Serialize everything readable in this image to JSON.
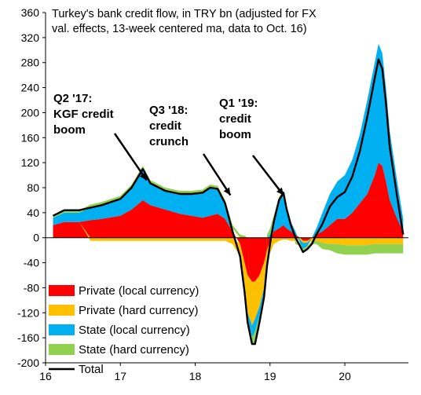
{
  "chart_data": {
    "type": "area",
    "title_lines": [
      "Turkey's bank credit flow, in TRY bn (adjusted for FX",
      "val. effects, 13-week centered ma, data to Oct. 16)"
    ],
    "xlabel": "",
    "ylabel": "",
    "ylim": [
      -200,
      360
    ],
    "yticks": [
      360,
      320,
      280,
      240,
      200,
      160,
      120,
      80,
      40,
      0,
      -40,
      -80,
      -120,
      -160,
      -200
    ],
    "xlim": [
      2016.0,
      2020.85
    ],
    "xticks": [
      {
        "label": "16",
        "value": 2016
      },
      {
        "label": "17",
        "value": 2017
      },
      {
        "label": "18",
        "value": 2018
      },
      {
        "label": "19",
        "value": 2019
      },
      {
        "label": "20",
        "value": 2020
      }
    ],
    "x": [
      2016.1,
      2016.25,
      2016.45,
      2016.6,
      2016.75,
      2016.9,
      2017.0,
      2017.15,
      2017.25,
      2017.3,
      2017.4,
      2017.6,
      2017.8,
      2017.95,
      2018.1,
      2018.2,
      2018.3,
      2018.4,
      2018.5,
      2018.6,
      2018.66,
      2018.7,
      2018.76,
      2018.8,
      2018.86,
      2018.92,
      2018.96,
      2019.0,
      2019.05,
      2019.12,
      2019.18,
      2019.22,
      2019.28,
      2019.34,
      2019.4,
      2019.44,
      2019.5,
      2019.56,
      2019.62,
      2019.7,
      2019.8,
      2019.9,
      2020.0,
      2020.1,
      2020.2,
      2020.3,
      2020.4,
      2020.45,
      2020.5,
      2020.55,
      2020.6,
      2020.7,
      2020.78
    ],
    "series": [
      {
        "name": "Private (local currency)",
        "color": "#ff0000",
        "values": [
          20,
          25,
          25,
          28,
          30,
          33,
          35,
          45,
          55,
          60,
          52,
          45,
          38,
          35,
          32,
          35,
          38,
          30,
          10,
          -10,
          -40,
          -60,
          -70,
          -70,
          -60,
          -40,
          -20,
          -5,
          10,
          15,
          20,
          15,
          10,
          5,
          0,
          -5,
          -5,
          0,
          5,
          10,
          20,
          30,
          30,
          40,
          55,
          70,
          100,
          120,
          115,
          90,
          60,
          30,
          10
        ]
      },
      {
        "name": "Private (hard currency)",
        "color": "#ffc000",
        "values": [
          0,
          0,
          0,
          -5,
          -5,
          -5,
          -5,
          -5,
          -5,
          -5,
          -5,
          -5,
          -5,
          -5,
          -5,
          -5,
          -5,
          -5,
          -10,
          -20,
          -40,
          -60,
          -70,
          -60,
          -50,
          -40,
          -30,
          -20,
          -10,
          -5,
          -3,
          -3,
          -5,
          -5,
          -3,
          -3,
          -3,
          -5,
          -5,
          -8,
          -10,
          -10,
          -12,
          -12,
          -12,
          -12,
          -10,
          -10,
          -10,
          -10,
          -10,
          -10,
          -10
        ]
      },
      {
        "name": "State (local currency)",
        "color": "#00b0f0",
        "values": [
          12,
          15,
          15,
          20,
          22,
          25,
          27,
          35,
          45,
          50,
          35,
          30,
          32,
          35,
          40,
          45,
          40,
          25,
          5,
          -5,
          -10,
          -15,
          -20,
          -20,
          -15,
          -10,
          0,
          5,
          20,
          45,
          50,
          30,
          15,
          5,
          -5,
          -10,
          -5,
          0,
          10,
          30,
          50,
          60,
          70,
          85,
          110,
          150,
          180,
          190,
          180,
          150,
          110,
          60,
          20
        ]
      },
      {
        "name": "State (hard currency)",
        "color": "#92d050",
        "values": [
          3,
          4,
          4,
          5,
          5,
          5,
          5,
          5,
          5,
          5,
          5,
          5,
          5,
          5,
          5,
          5,
          5,
          5,
          5,
          5,
          3,
          0,
          -10,
          -20,
          -10,
          -5,
          5,
          10,
          5,
          5,
          5,
          5,
          0,
          -5,
          -5,
          -5,
          -5,
          -5,
          -5,
          -10,
          -10,
          -15,
          -15,
          -15,
          -15,
          -15,
          -15,
          -15,
          -15,
          -15,
          -15,
          -15,
          -15
        ]
      },
      {
        "name": "Total",
        "color": "#000000",
        "values": [
          35,
          44,
          44,
          48,
          52,
          58,
          62,
          80,
          100,
          110,
          87,
          75,
          70,
          70,
          72,
          80,
          78,
          55,
          10,
          -30,
          -87,
          -135,
          -170,
          -170,
          -135,
          -95,
          -45,
          -10,
          25,
          60,
          72,
          47,
          20,
          0,
          -13,
          -23,
          -18,
          -10,
          5,
          22,
          50,
          65,
          73,
          98,
          138,
          193,
          255,
          285,
          270,
          215,
          145,
          65,
          5
        ]
      }
    ],
    "annotations": [
      {
        "lines": [
          "Q2 '17:",
          "KGF credit",
          "boom"
        ],
        "target_x": 2017.35,
        "target_y": 92
      },
      {
        "lines": [
          "Q3 '18:",
          "credit",
          "crunch"
        ],
        "target_x": 2018.47,
        "target_y": 68
      },
      {
        "lines": [
          "Q1 '19:",
          "credit",
          "boom"
        ],
        "target_x": 2019.18,
        "target_y": 68
      }
    ],
    "legend_position": "bottom-left",
    "grid": false
  }
}
